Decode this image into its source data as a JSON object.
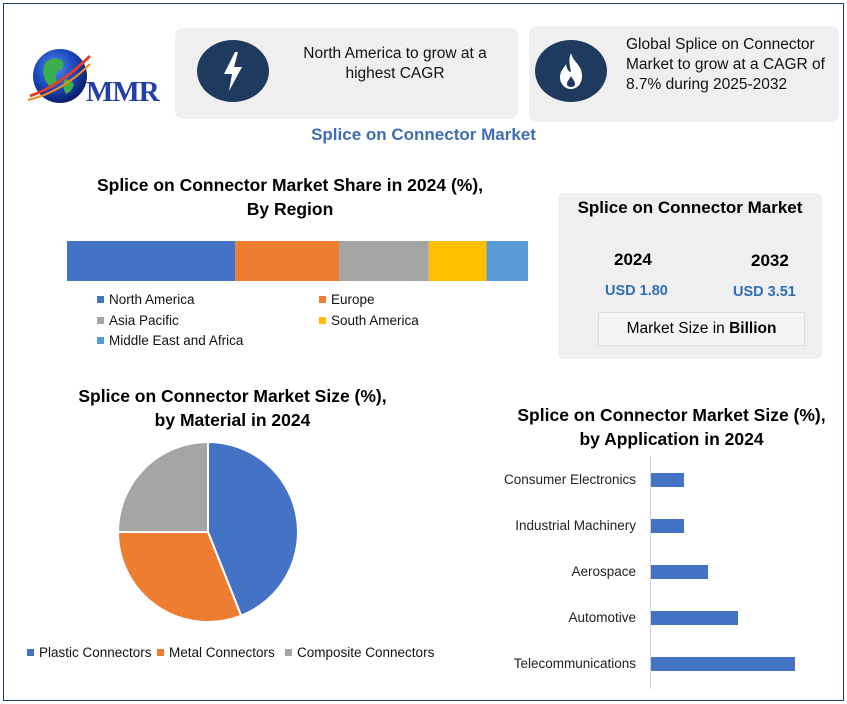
{
  "logo": {
    "text": "MMR"
  },
  "info_cards": [
    {
      "icon": "lightning-bolt-icon",
      "lines": [
        "North America to grow at a",
        "highest CAGR"
      ]
    },
    {
      "icon": "flame-icon",
      "lines": [
        "Global Splice on Connector",
        "Market to grow at a CAGR of",
        "8.7% during 2025-2032"
      ]
    }
  ],
  "main_title": "Splice on Connector Market",
  "market_size": {
    "title": "Splice on Connector Market",
    "years": [
      {
        "year": "2024",
        "value": "USD 1.80"
      },
      {
        "year": "2032",
        "value": "USD 3.51"
      }
    ],
    "unit_prefix": "Market Size in ",
    "unit_bold": "Billion"
  },
  "colors": {
    "blue": "#4472c4",
    "orange": "#ed7d31",
    "gray": "#a5a5a5",
    "yellow": "#ffc000",
    "lightblue": "#5b9bd5",
    "navy": "#1f3a5f",
    "title_blue": "#3f6fb0"
  },
  "chart_data": [
    {
      "type": "bar",
      "orientation": "stacked-horizontal",
      "title": "Splice on Connector Market Share in 2024 (%), By Region",
      "title_lines": [
        "Splice on Connector Market Share in 2024 (%),",
        "By Region"
      ],
      "categories": [
        "North America",
        "Europe",
        "Asia Pacific",
        "South America",
        "Middle East and Africa"
      ],
      "values": [
        36.5,
        22.5,
        19.5,
        12.5,
        9.0
      ],
      "colors": [
        "#4472c4",
        "#ed7d31",
        "#a5a5a5",
        "#ffc000",
        "#5b9bd5"
      ],
      "legend": "bottom"
    },
    {
      "type": "pie",
      "title": "Splice on Connector Market Size (%), by Material in 2024",
      "title_lines": [
        "Splice on Connector Market Size (%),",
        "by Material in 2024"
      ],
      "categories": [
        "Plastic Connectors",
        "Metal Connectors",
        "Composite Connectors"
      ],
      "values": [
        44,
        31,
        25
      ],
      "colors": [
        "#4472c4",
        "#ed7d31",
        "#a5a5a5"
      ],
      "legend": "bottom"
    },
    {
      "type": "bar",
      "orientation": "horizontal",
      "title": "Splice on Connector Market Size (%), by Application in 2024",
      "title_lines": [
        "Splice on Connector Market Size (%),",
        "by Application in 2024"
      ],
      "categories": [
        "Consumer Electronics",
        "Industrial Machinery",
        "Aerospace",
        "Automotive",
        "Telecommunications"
      ],
      "values": [
        11,
        11,
        19,
        29,
        48
      ],
      "color": "#4472c4",
      "xlim": [
        0,
        60
      ]
    }
  ]
}
